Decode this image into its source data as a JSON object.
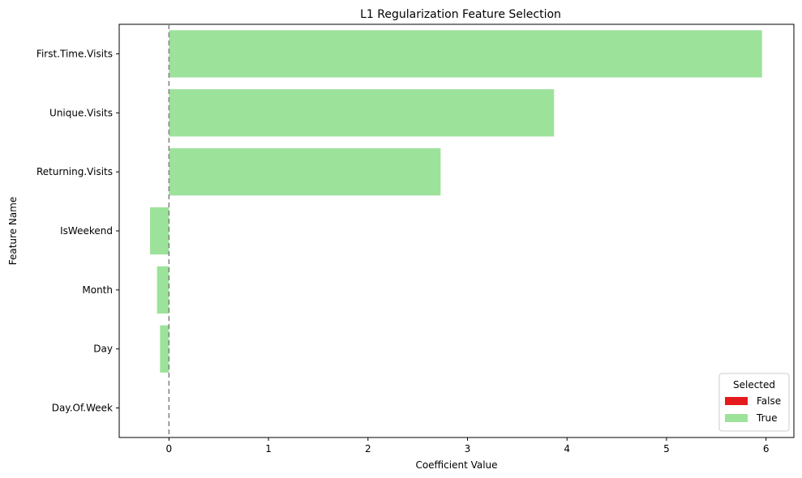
{
  "chart_data": {
    "type": "bar",
    "orientation": "horizontal",
    "title": "L1 Regularization Feature Selection",
    "xlabel": "Coefficient Value",
    "ylabel": "Feature Name",
    "categories": [
      "First.Time.Visits",
      "Unique.Visits",
      "Returning.Visits",
      "IsWeekend",
      "Month",
      "Day",
      "Day.Of.Week"
    ],
    "values": [
      5.96,
      3.87,
      2.73,
      -0.19,
      -0.12,
      -0.09,
      0.0
    ],
    "selected": [
      true,
      true,
      true,
      true,
      true,
      true,
      false
    ],
    "xlim": [
      -0.5,
      6.28
    ],
    "xticks": [
      0,
      1,
      2,
      3,
      4,
      5,
      6
    ],
    "reference_line": {
      "x": 0,
      "style": "dashed",
      "color": "#808080"
    },
    "grid": false,
    "legend": {
      "title": "Selected",
      "placement": "lower-right",
      "entries": [
        {
          "label": "False",
          "color": "#e41a1c"
        },
        {
          "label": "True",
          "color": "#9de29b"
        }
      ]
    }
  },
  "colors": {
    "true_bar": "#9de29b",
    "false_bar": "#e41a1c",
    "zero_line": "#808080"
  }
}
